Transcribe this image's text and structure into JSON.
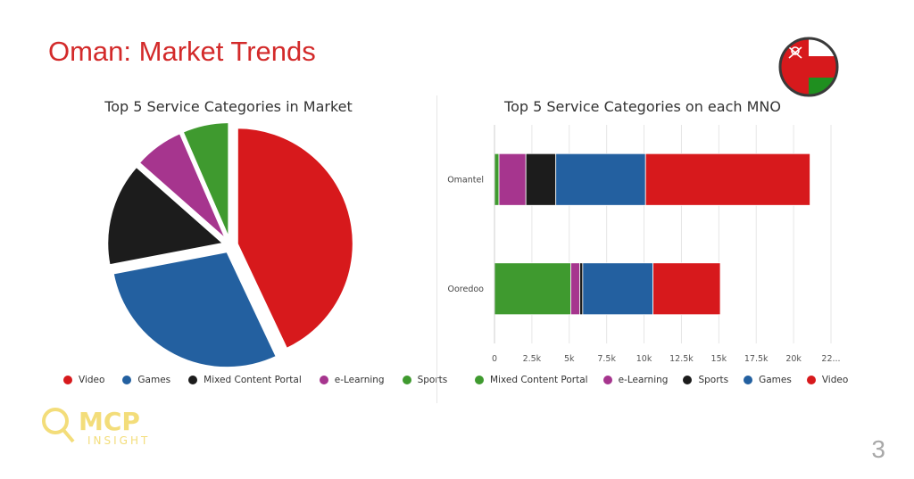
{
  "slide": {
    "title": "Oman: Market Trends",
    "page_number": "3"
  },
  "logo": {
    "text_top": "MCP",
    "text_bottom": "INSIGHT",
    "color": "#f3dd7a"
  },
  "flag": {
    "red": "#d7191c",
    "green": "#1f8f1f",
    "white": "#ffffff"
  },
  "colors": {
    "Video": "#d7191c",
    "Games": "#2360a0",
    "Mixed Content Portal": "#1c1c1c",
    "e-Learning": "#a6358e",
    "Sports": "#3f9a2f",
    "Mixed Content Portal (bar)": "#3f9a2f",
    "Sports (bar)": "#1c1c1c"
  },
  "chart_data": [
    {
      "type": "pie",
      "title": "Top 5 Service Categories in Market",
      "categories": [
        "Video",
        "Games",
        "Mixed Content Portal",
        "e-Learning",
        "Sports"
      ],
      "values": [
        43,
        29,
        14.5,
        7,
        6.5
      ],
      "unit": "%",
      "legend_position": "bottom"
    },
    {
      "type": "bar",
      "orientation": "horizontal",
      "stacked": true,
      "title": "Top 5 Service Categories on each MNO",
      "categories": [
        "Omantel",
        "Ooredoo"
      ],
      "series": [
        {
          "name": "Mixed Content Portal",
          "values": [
            300,
            5100
          ]
        },
        {
          "name": "e-Learning",
          "values": [
            1800,
            600
          ]
        },
        {
          "name": "Sports",
          "values": [
            2000,
            200
          ]
        },
        {
          "name": "Games",
          "values": [
            6000,
            4700
          ]
        },
        {
          "name": "Video",
          "values": [
            11000,
            4500
          ]
        }
      ],
      "x_ticks": [
        "0",
        "2.5k",
        "5k",
        "7.5k",
        "10k",
        "12.5k",
        "15k",
        "17.5k",
        "20k",
        "22..."
      ],
      "xlim": [
        0,
        22500
      ],
      "grid": true,
      "legend_position": "bottom"
    }
  ]
}
